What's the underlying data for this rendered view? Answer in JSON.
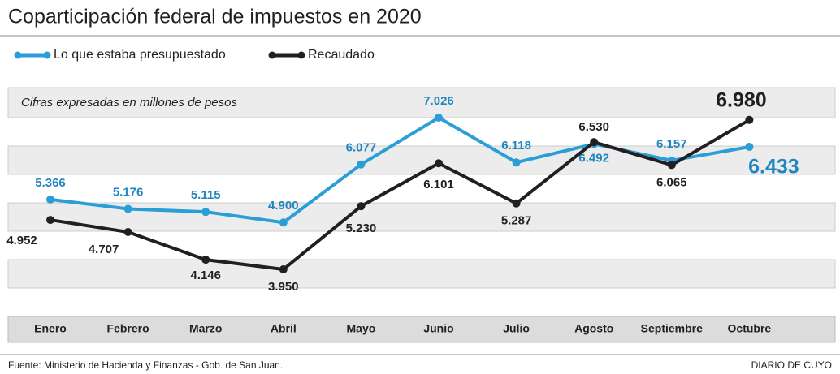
{
  "chart_data": {
    "type": "line",
    "title": "Coparticipación federal de impuestos en 2020",
    "subtitle": "Cifras expresadas en millones de pesos",
    "source": "Fuente: Ministerio de Hacienda y Finanzas - Gob. de San Juan.",
    "credit": "DIARIO DE CUYO",
    "categories": [
      "Enero",
      "Febrero",
      "Marzo",
      "Abril",
      "Mayo",
      "Junio",
      "Julio",
      "Agosto",
      "Septiembre",
      "Octubre"
    ],
    "series": [
      {
        "name": "Lo que estaba presupuestado",
        "color": "#2b9ed8",
        "values": [
          5366,
          5176,
          5115,
          4900,
          6077,
          7026,
          6118,
          6492,
          6157,
          6433
        ],
        "value_labels": [
          "5.366",
          "5.176",
          "5.115",
          "4.900",
          "6.077",
          "7.026",
          "6.118",
          "6.492",
          "6.157",
          "6.433"
        ]
      },
      {
        "name": "Recaudado",
        "color": "#231f20",
        "values": [
          4952,
          4707,
          4146,
          3950,
          5230,
          6101,
          5287,
          6530,
          6065,
          6980
        ],
        "value_labels": [
          "4.952",
          "4.707",
          "4.146",
          "3.950",
          "5.230",
          "6.101",
          "5.287",
          "6.530",
          "6.065",
          "6.980"
        ]
      }
    ]
  }
}
